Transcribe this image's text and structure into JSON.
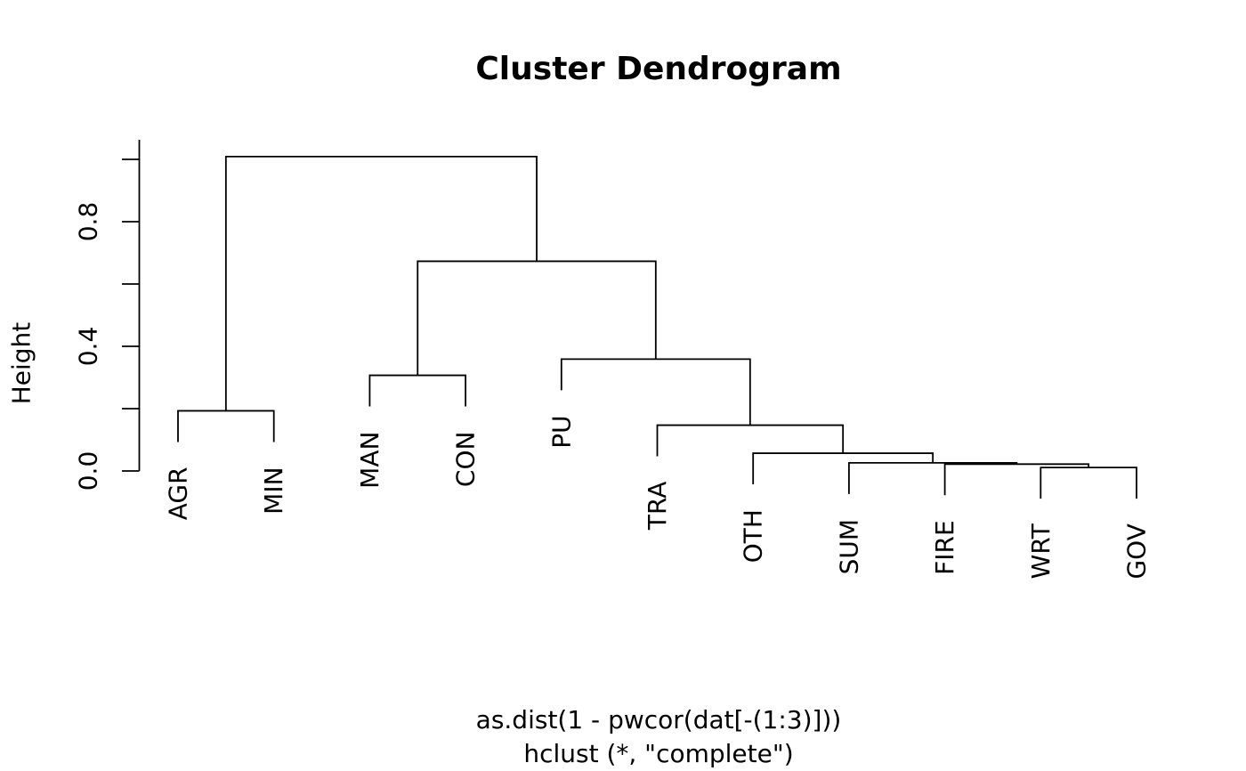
{
  "chart_data": {
    "type": "dendrogram",
    "title": "Cluster Dendrogram",
    "ylabel": "Height",
    "caption_lines": [
      "as.dist(1 - pwcor(dat[-(1:3)]))",
      "hclust (*, \"complete\")"
    ],
    "leaves": [
      "AGR",
      "MIN",
      "MAN",
      "CON",
      "PU",
      "TRA",
      "OTH",
      "SUM",
      "FIRE",
      "WRT",
      "GOV"
    ],
    "merges": [
      {
        "a": -10,
        "b": -11,
        "h": 0.011
      },
      {
        "a": -9,
        "b": 1,
        "h": 0.022
      },
      {
        "a": -8,
        "b": 2,
        "h": 0.026
      },
      {
        "a": -7,
        "b": 3,
        "h": 0.057
      },
      {
        "a": -6,
        "b": 4,
        "h": 0.147
      },
      {
        "a": -1,
        "b": -2,
        "h": 0.193
      },
      {
        "a": -3,
        "b": -4,
        "h": 0.307
      },
      {
        "a": -5,
        "b": 5,
        "h": 0.359
      },
      {
        "a": 7,
        "b": 8,
        "h": 0.673
      },
      {
        "a": 6,
        "b": 9,
        "h": 1.009
      }
    ],
    "hang": 0.1,
    "y_axis": {
      "tick_values": [
        0,
        0.2,
        0.4,
        0.6,
        0.8,
        1.0
      ],
      "tick_labels": [
        "0.0",
        "",
        "0.4",
        "",
        "0.8",
        ""
      ],
      "range": [
        0,
        1.009
      ]
    },
    "colors": {
      "line": "#000000",
      "text": "#000000",
      "background": "#ffffff"
    }
  }
}
